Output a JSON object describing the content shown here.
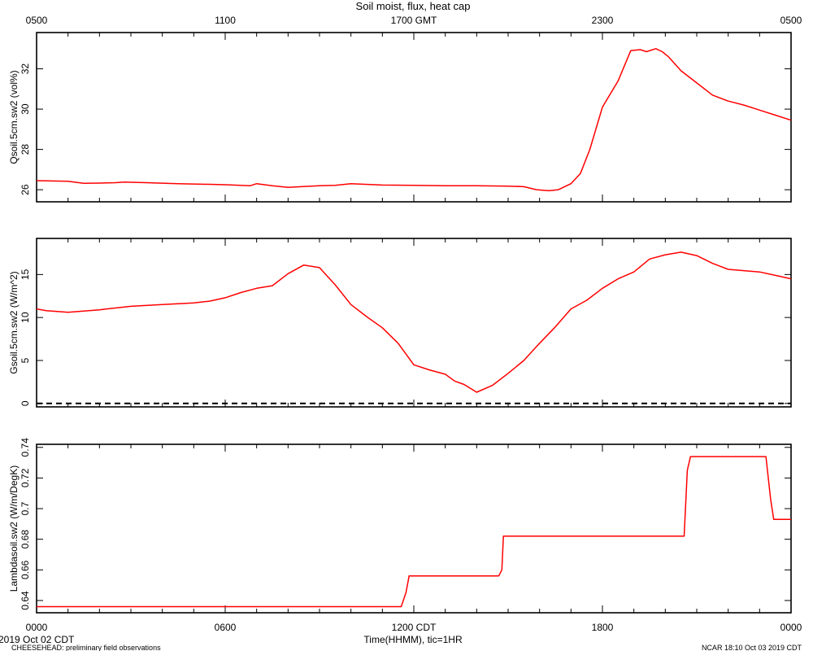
{
  "title": "Soil moist, flux, heat cap",
  "top_axis": {
    "ticks": [
      "0500",
      "1100",
      "1700 GMT",
      "2300",
      "0500"
    ]
  },
  "bottom_axis": {
    "ticks": [
      "0000",
      "0600",
      "1200 CDT",
      "1800",
      "0000"
    ],
    "xlabel": "Time(HHMM), tic=1HR",
    "date_left": "2019 Oct 02 CDT"
  },
  "footer": {
    "left": "CHEESEHEAD: preliminary field observations",
    "right": "NCAR 18:10 Oct 03 2019 CDT"
  },
  "colors": {
    "series": "#ff0000",
    "axis": "#000000"
  },
  "chart_data": [
    {
      "type": "line",
      "ylabel": "Qsoil.5cm.sw2 (vol%)",
      "x_units": "hours since 0000 CDT",
      "xlim": [
        0,
        24
      ],
      "ylim": [
        25.4,
        33.8
      ],
      "yticks": [
        26,
        28,
        30,
        32
      ],
      "grid": false,
      "series": [
        {
          "x": [
            0,
            1,
            1.5,
            2,
            2.5,
            2.8,
            3.5,
            4.5,
            5.5,
            6,
            6.8,
            7,
            7.5,
            8,
            9,
            9.5,
            10,
            11,
            12,
            13,
            14,
            15,
            15.5,
            15.9,
            16.3,
            16.6,
            17,
            17.3,
            17.6,
            18,
            18.5,
            18.9,
            19.2,
            19.4,
            19.7,
            19.9,
            20.1,
            20.5,
            21,
            21.5,
            22,
            22.5,
            23,
            23.5,
            24
          ],
          "values": [
            26.45,
            26.42,
            26.32,
            26.33,
            26.35,
            26.38,
            26.35,
            26.3,
            26.27,
            26.25,
            26.2,
            26.3,
            26.2,
            26.12,
            26.2,
            26.22,
            26.3,
            26.23,
            26.22,
            26.2,
            26.2,
            26.18,
            26.15,
            26.0,
            25.95,
            26.0,
            26.3,
            26.8,
            28.0,
            30.1,
            31.4,
            32.9,
            32.95,
            32.85,
            33.0,
            32.85,
            32.6,
            31.9,
            31.3,
            30.7,
            30.4,
            30.2,
            29.95,
            29.7,
            29.45
          ]
        }
      ]
    },
    {
      "type": "line",
      "ylabel": "Gsoil.5cm.sw2 (W/m^2)",
      "x_units": "hours since 0000 CDT",
      "xlim": [
        0,
        24
      ],
      "ylim": [
        -0.4,
        19.2
      ],
      "yticks": [
        0,
        5,
        10,
        15
      ],
      "zero_line": "dashed",
      "grid": false,
      "series": [
        {
          "x": [
            0,
            0.3,
            1,
            2,
            3,
            4,
            5,
            5.5,
            6,
            6.5,
            7,
            7.5,
            8,
            8.5,
            9,
            9.5,
            10,
            10.5,
            11,
            11.5,
            12,
            12.5,
            13,
            13.3,
            13.6,
            14,
            14.5,
            15,
            15.5,
            16,
            16.5,
            17,
            17.5,
            18,
            18.5,
            19,
            19.5,
            20,
            20.5,
            21,
            21.5,
            22,
            23,
            23.5,
            24
          ],
          "values": [
            11.0,
            10.8,
            10.6,
            10.9,
            11.3,
            11.5,
            11.7,
            11.9,
            12.3,
            12.9,
            13.4,
            13.7,
            15.1,
            16.1,
            15.8,
            13.8,
            11.5,
            10.1,
            8.8,
            7.0,
            4.5,
            3.9,
            3.4,
            2.6,
            2.2,
            1.3,
            2.1,
            3.5,
            5.0,
            7.0,
            8.9,
            11.0,
            12.0,
            13.4,
            14.5,
            15.3,
            16.8,
            17.3,
            17.6,
            17.2,
            16.3,
            15.6,
            15.3,
            14.9,
            14.5
          ]
        }
      ]
    },
    {
      "type": "line",
      "ylabel": "Lambdasoil.sw2 (W/m/DegK)",
      "x_units": "hours since 0000 CDT",
      "xlim": [
        0,
        24
      ],
      "ylim": [
        0.632,
        0.742
      ],
      "yticks": [
        0.64,
        0.66,
        0.68,
        0.7,
        0.72,
        0.74
      ],
      "grid": false,
      "series": [
        {
          "x": [
            0,
            11.6,
            11.75,
            11.85,
            14.7,
            14.8,
            14.85,
            20.6,
            20.7,
            20.8,
            23.2,
            23.35,
            23.45,
            24
          ],
          "values": [
            0.636,
            0.636,
            0.645,
            0.656,
            0.656,
            0.66,
            0.682,
            0.682,
            0.725,
            0.734,
            0.734,
            0.706,
            0.693,
            0.693
          ]
        }
      ]
    }
  ]
}
